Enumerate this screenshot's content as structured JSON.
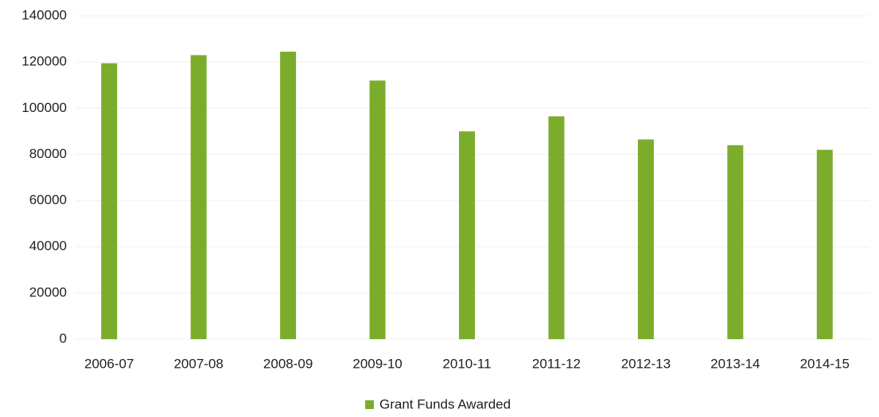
{
  "chart_data": {
    "type": "bar",
    "categories": [
      "2006-07",
      "2007-08",
      "2008-09",
      "2009-10",
      "2010-11",
      "2011-12",
      "2012-13",
      "2013-14",
      "2014-15"
    ],
    "series": [
      {
        "name": "Grant Funds Awarded",
        "color": "#7cac2c",
        "values": [
          119500,
          123000,
          124500,
          112000,
          90000,
          96500,
          86500,
          84000,
          82000
        ]
      }
    ],
    "ylim": [
      0,
      140000
    ],
    "yticks": [
      0,
      20000,
      40000,
      60000,
      80000,
      100000,
      120000,
      140000
    ],
    "grid": true,
    "legend": "bottom"
  }
}
